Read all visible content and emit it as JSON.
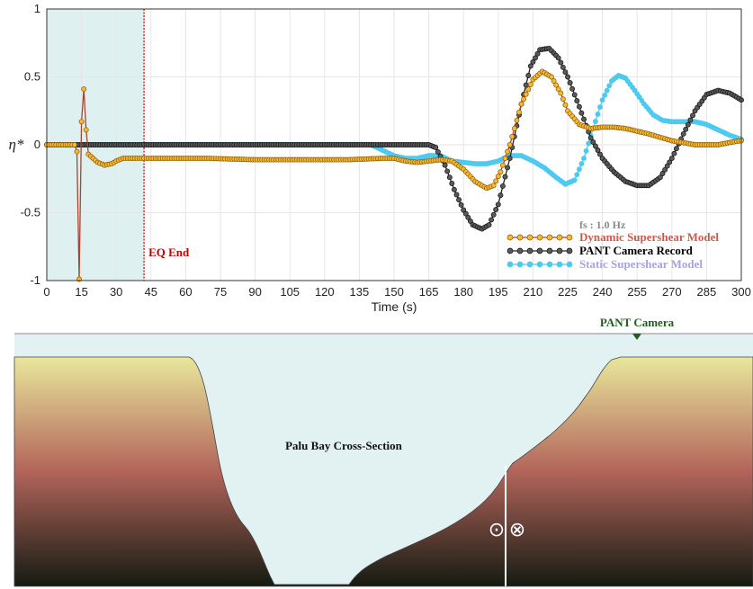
{
  "chart_data": {
    "type": "line",
    "xlabel": "Time (s)",
    "ylabel": "η*",
    "xlim": [
      0,
      300
    ],
    "ylim": [
      -1,
      1
    ],
    "xticks": [
      0,
      15,
      30,
      45,
      60,
      75,
      90,
      105,
      120,
      135,
      150,
      165,
      180,
      195,
      210,
      225,
      240,
      255,
      270,
      285,
      300
    ],
    "yticks": [
      -1,
      -0.5,
      0,
      0.5,
      1
    ],
    "grid": true,
    "shaded_region": {
      "x": [
        0,
        42
      ],
      "color": "#dff0f0"
    },
    "vline": {
      "x": 42,
      "label": "EQ End",
      "color": "#c00000"
    },
    "legend": {
      "placement": "bottom-right",
      "note": "fs : 1.0 Hz"
    },
    "series": [
      {
        "name": "Dynamic Supershear Model",
        "label_color": "#cc5a4e",
        "marker_fill": "#f7b934",
        "marker_edge": "#8a5a00",
        "line_color": "#a8452f",
        "points": [
          [
            0,
            0
          ],
          [
            5,
            0
          ],
          [
            10,
            0
          ],
          [
            12,
            0
          ],
          [
            13,
            -0.05
          ],
          [
            14,
            -0.99
          ],
          [
            15,
            0.17
          ],
          [
            16,
            0.41
          ],
          [
            17,
            0.11
          ],
          [
            18,
            -0.07
          ],
          [
            20,
            -0.1
          ],
          [
            22,
            -0.13
          ],
          [
            25,
            -0.15
          ],
          [
            28,
            -0.14
          ],
          [
            30,
            -0.12
          ],
          [
            33,
            -0.1
          ],
          [
            36,
            -0.1
          ],
          [
            40,
            -0.1
          ],
          [
            50,
            -0.1
          ],
          [
            70,
            -0.1
          ],
          [
            90,
            -0.11
          ],
          [
            110,
            -0.11
          ],
          [
            130,
            -0.11
          ],
          [
            145,
            -0.1
          ],
          [
            150,
            -0.1
          ],
          [
            155,
            -0.12
          ],
          [
            160,
            -0.13
          ],
          [
            165,
            -0.12
          ],
          [
            170,
            -0.11
          ],
          [
            175,
            -0.12
          ],
          [
            180,
            -0.18
          ],
          [
            185,
            -0.27
          ],
          [
            190,
            -0.32
          ],
          [
            193,
            -0.3
          ],
          [
            196,
            -0.2
          ],
          [
            200,
            0.0
          ],
          [
            205,
            0.3
          ],
          [
            210,
            0.48
          ],
          [
            214,
            0.54
          ],
          [
            218,
            0.5
          ],
          [
            222,
            0.38
          ],
          [
            225,
            0.25
          ],
          [
            230,
            0.15
          ],
          [
            235,
            0.12
          ],
          [
            240,
            0.13
          ],
          [
            245,
            0.13
          ],
          [
            250,
            0.12
          ],
          [
            260,
            0.08
          ],
          [
            270,
            0.03
          ],
          [
            280,
            0.0
          ],
          [
            290,
            0.0
          ],
          [
            296,
            0.02
          ],
          [
            300,
            0.03
          ]
        ]
      },
      {
        "name": "PANT Camera Record",
        "label_color": "#000000",
        "marker_fill": "#5a5a5a",
        "marker_edge": "#111111",
        "line_color": "#222222",
        "points": [
          [
            0,
            0
          ],
          [
            20,
            0
          ],
          [
            40,
            0
          ],
          [
            60,
            0
          ],
          [
            80,
            0
          ],
          [
            100,
            0
          ],
          [
            120,
            0
          ],
          [
            140,
            0
          ],
          [
            160,
            0
          ],
          [
            165,
            0
          ],
          [
            168,
            -0.02
          ],
          [
            172,
            -0.15
          ],
          [
            176,
            -0.33
          ],
          [
            180,
            -0.48
          ],
          [
            184,
            -0.59
          ],
          [
            188,
            -0.62
          ],
          [
            191,
            -0.59
          ],
          [
            195,
            -0.44
          ],
          [
            200,
            -0.1
          ],
          [
            205,
            0.3
          ],
          [
            209,
            0.58
          ],
          [
            213,
            0.7
          ],
          [
            217,
            0.71
          ],
          [
            221,
            0.64
          ],
          [
            225,
            0.5
          ],
          [
            230,
            0.28
          ],
          [
            235,
            0.05
          ],
          [
            240,
            -0.1
          ],
          [
            245,
            -0.2
          ],
          [
            250,
            -0.27
          ],
          [
            255,
            -0.3
          ],
          [
            260,
            -0.3
          ],
          [
            265,
            -0.24
          ],
          [
            270,
            -0.1
          ],
          [
            275,
            0.08
          ],
          [
            280,
            0.25
          ],
          [
            285,
            0.37
          ],
          [
            290,
            0.4
          ],
          [
            295,
            0.38
          ],
          [
            300,
            0.33
          ]
        ]
      },
      {
        "name": "Static Supershear Model",
        "label_color": "#a3a3e6",
        "marker_fill": "#4ec9f0",
        "marker_edge": "#4ec9f0",
        "line_color": "#4ec9f0",
        "points": [
          [
            0,
            0
          ],
          [
            20,
            0
          ],
          [
            40,
            0
          ],
          [
            60,
            0
          ],
          [
            80,
            0
          ],
          [
            100,
            0
          ],
          [
            120,
            0
          ],
          [
            140,
            0
          ],
          [
            150,
            -0.08
          ],
          [
            155,
            -0.1
          ],
          [
            160,
            -0.1
          ],
          [
            165,
            -0.08
          ],
          [
            170,
            -0.08
          ],
          [
            175,
            -0.12
          ],
          [
            180,
            -0.13
          ],
          [
            185,
            -0.14
          ],
          [
            190,
            -0.14
          ],
          [
            195,
            -0.12
          ],
          [
            200,
            -0.08
          ],
          [
            205,
            -0.08
          ],
          [
            210,
            -0.12
          ],
          [
            215,
            -0.17
          ],
          [
            220,
            -0.24
          ],
          [
            224,
            -0.29
          ],
          [
            228,
            -0.26
          ],
          [
            232,
            -0.1
          ],
          [
            236,
            0.12
          ],
          [
            240,
            0.33
          ],
          [
            244,
            0.47
          ],
          [
            247,
            0.51
          ],
          [
            250,
            0.49
          ],
          [
            254,
            0.4
          ],
          [
            258,
            0.3
          ],
          [
            262,
            0.22
          ],
          [
            266,
            0.18
          ],
          [
            270,
            0.17
          ],
          [
            275,
            0.17
          ],
          [
            280,
            0.17
          ],
          [
            285,
            0.15
          ],
          [
            290,
            0.11
          ],
          [
            295,
            0.07
          ],
          [
            300,
            0.04
          ]
        ]
      }
    ]
  },
  "cross_section": {
    "title": "Palu Bay Cross-Section",
    "camera_label": "PANT Camera",
    "camera_color": "#1f5e1f",
    "water_color": "#e2f2f2",
    "terrain_top_color": "#e9e79c",
    "terrain_mid_color": "#b2645a",
    "terrain_bottom_color": "#141b12",
    "symbols": [
      "⊙",
      "⊗"
    ]
  }
}
